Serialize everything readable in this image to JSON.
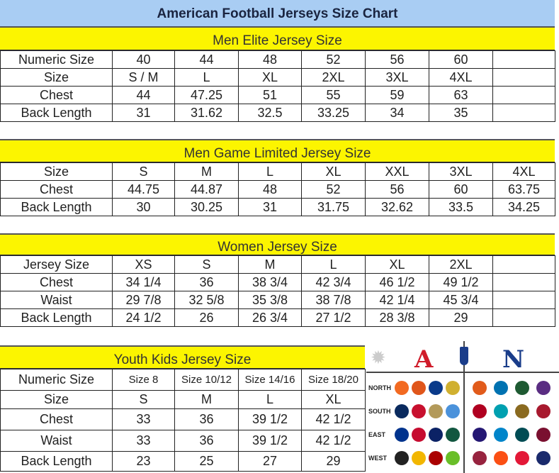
{
  "title": "American Football Jerseys Size Chart",
  "colors": {
    "title_bg": "#a9cdf3",
    "section_bg": "#fcf500"
  },
  "sections": [
    {
      "heading": "Men Elite Jersey Size",
      "rows": [
        [
          "Numeric Size",
          "40",
          "44",
          "48",
          "52",
          "56",
          "60",
          ""
        ],
        [
          "Size",
          "S / M",
          "L",
          "XL",
          "2XL",
          "3XL",
          "4XL",
          ""
        ],
        [
          "Chest",
          "44",
          "47.25",
          "51",
          "55",
          "59",
          "63",
          ""
        ],
        [
          "Back Length",
          "31",
          "31.62",
          "32.5",
          "33.25",
          "34",
          "35",
          ""
        ]
      ]
    },
    {
      "heading": "Men Game Limited Jersey Size",
      "rows": [
        [
          "Size",
          "S",
          "M",
          "L",
          "XL",
          "XXL",
          "3XL",
          "4XL"
        ],
        [
          "Chest",
          "44.75",
          "44.87",
          "48",
          "52",
          "56",
          "60",
          "63.75"
        ],
        [
          "Back Length",
          "30",
          "30.25",
          "31",
          "31.75",
          "32.62",
          "33.5",
          "34.25"
        ]
      ]
    },
    {
      "heading": "Women Jersey Size",
      "rows": [
        [
          "Jersey Size",
          "XS",
          "S",
          "M",
          "L",
          "XL",
          "2XL",
          ""
        ],
        [
          "Chest",
          "34 1/4",
          "36",
          "38 3/4",
          "42 3/4",
          "46 1/2",
          "49 1/2",
          ""
        ],
        [
          "Waist",
          "29 7/8",
          "32 5/8",
          "35 3/8",
          "38 7/8",
          "42 1/4",
          "45 3/4",
          ""
        ],
        [
          "Back Length",
          "24 1/2",
          "26",
          "26 3/4",
          "27 1/2",
          "28 3/8",
          "29",
          ""
        ]
      ]
    },
    {
      "heading": "Youth Kids Jersey Size",
      "rows": [
        [
          "Numeric Size",
          "Size 8",
          "Size 10/12",
          "Size 14/16",
          "Size 18/20"
        ],
        [
          "Size",
          "S",
          "M",
          "L",
          "XL"
        ],
        [
          "Chest",
          "33",
          "36",
          "39 1/2",
          "42 1/2"
        ],
        [
          "Waist",
          "33",
          "36",
          "39 1/2",
          "42 1/2"
        ],
        [
          "Back Length",
          "23",
          "25",
          "27",
          "29"
        ]
      ]
    }
  ],
  "logo_panel": {
    "afc": "A",
    "nfc": "N",
    "divisions": [
      "NORTH",
      "SOUTH",
      "EAST",
      "WEST"
    ],
    "team_colors": [
      [
        "#f26a21",
        "#e0561b",
        "#0a3a8a",
        "#d0b030",
        "#e15b1b",
        "#0072b1",
        "#1e5a32",
        "#5a2d82"
      ],
      [
        "#0a2a5e",
        "#c8102e",
        "#b39a5a",
        "#4b92db",
        "#b00020",
        "#00a0b0",
        "#8a6a20",
        "#a8192e"
      ],
      [
        "#00338d",
        "#c60c30",
        "#0b2265",
        "#125740",
        "#241773",
        "#0085ca",
        "#004c54",
        "#7a1030"
      ],
      [
        "#222222",
        "#f2b600",
        "#aa0000",
        "#69be28",
        "#97233f",
        "#fb4f14",
        "#e31837",
        "#1a2a6c"
      ]
    ]
  }
}
